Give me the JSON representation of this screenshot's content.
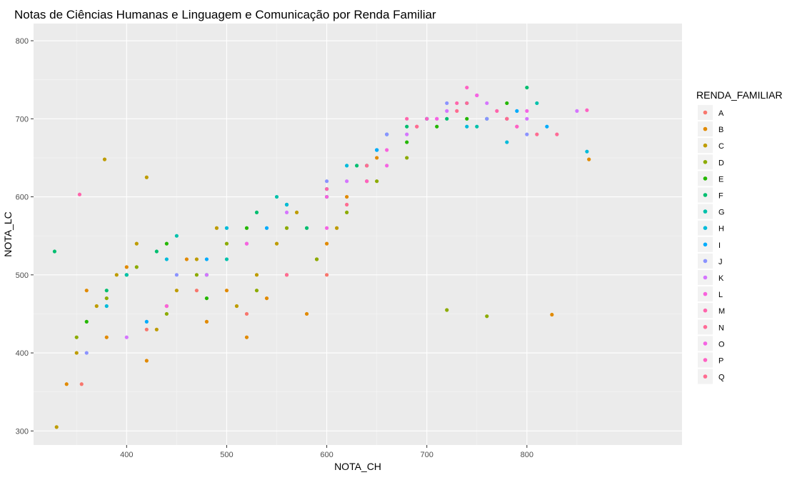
{
  "chart_data": {
    "type": "scatter",
    "title": "Notas de Ciências Humanas e Linguagem e Comunicação por Renda Familiar",
    "xlabel": "NOTA_CH",
    "ylabel": "NOTA_LC",
    "xlim": [
      307,
      955
    ],
    "ylim": [
      282,
      822
    ],
    "x_ticks": [
      400,
      500,
      600,
      700,
      800
    ],
    "y_ticks": [
      300,
      400,
      500,
      600,
      700,
      800
    ],
    "grid": true,
    "legend": {
      "title": "RENDA_FAMILIAR",
      "placement": "right",
      "entries": [
        "A",
        "B",
        "C",
        "D",
        "E",
        "F",
        "G",
        "H",
        "I",
        "J",
        "K",
        "L",
        "M",
        "N",
        "O",
        "P",
        "Q"
      ]
    },
    "colors": {
      "A": "#F8766D",
      "B": "#E18A00",
      "C": "#BE9C00",
      "D": "#8CAB00",
      "E": "#24B700",
      "F": "#00BE70",
      "G": "#00C1AB",
      "H": "#00BBDA",
      "I": "#00ACFC",
      "J": "#8B93FF",
      "K": "#D575FE",
      "L": "#F962DD",
      "M": "#FF65AC",
      "N": "#FF6B96",
      "O": "#F564E3",
      "P": "#FF61C3",
      "Q": "#FF6C91"
    },
    "series": [
      {
        "name": "A",
        "x": [
          355,
          420,
          470,
          520,
          600
        ],
        "y": [
          360,
          430,
          480,
          450,
          500
        ]
      },
      {
        "name": "B",
        "x": [
          340,
          360,
          380,
          400,
          420,
          440,
          460,
          480,
          500,
          520,
          540,
          560,
          580,
          600,
          620,
          650,
          825,
          862
        ],
        "y": [
          360,
          480,
          420,
          510,
          390,
          460,
          520,
          440,
          480,
          420,
          470,
          500,
          450,
          540,
          600,
          650,
          449,
          648
        ]
      },
      {
        "name": "C",
        "x": [
          330,
          350,
          370,
          390,
          410,
          430,
          450,
          470,
          490,
          510,
          530,
          550,
          570,
          590,
          610,
          640,
          378,
          420
        ],
        "y": [
          305,
          400,
          460,
          500,
          540,
          430,
          480,
          520,
          560,
          460,
          500,
          540,
          580,
          520,
          560,
          620,
          648,
          625
        ]
      },
      {
        "name": "D",
        "x": [
          350,
          380,
          410,
          440,
          470,
          500,
          530,
          560,
          590,
          620,
          650,
          680,
          720,
          760
        ],
        "y": [
          420,
          470,
          510,
          450,
          500,
          540,
          480,
          560,
          520,
          580,
          620,
          650,
          455,
          447
        ]
      },
      {
        "name": "E",
        "x": [
          360,
          400,
          440,
          480,
          520,
          560,
          600,
          640,
          680,
          710,
          740,
          780
        ],
        "y": [
          440,
          500,
          540,
          470,
          560,
          590,
          600,
          640,
          670,
          690,
          700,
          720
        ]
      },
      {
        "name": "F",
        "x": [
          328,
          380,
          430,
          480,
          530,
          580,
          630,
          680,
          720,
          760,
          800
        ],
        "y": [
          530,
          480,
          530,
          500,
          580,
          560,
          640,
          690,
          700,
          700,
          740
        ]
      },
      {
        "name": "G",
        "x": [
          400,
          450,
          500,
          550,
          600,
          650,
          700,
          750,
          780,
          810
        ],
        "y": [
          500,
          550,
          520,
          600,
          610,
          660,
          700,
          690,
          700,
          720
        ]
      },
      {
        "name": "H",
        "x": [
          380,
          440,
          500,
          560,
          620,
          660,
          700,
          740,
          780,
          860
        ],
        "y": [
          460,
          520,
          560,
          590,
          640,
          680,
          700,
          690,
          670,
          658
        ]
      },
      {
        "name": "I",
        "x": [
          420,
          480,
          540,
          600,
          650,
          700,
          740,
          790,
          820
        ],
        "y": [
          440,
          520,
          560,
          600,
          660,
          700,
          720,
          710,
          690
        ]
      },
      {
        "name": "J",
        "x": [
          360,
          450,
          520,
          600,
          660,
          720,
          760,
          800
        ],
        "y": [
          400,
          500,
          540,
          620,
          680,
          720,
          700,
          680
        ]
      },
      {
        "name": "K",
        "x": [
          400,
          480,
          560,
          620,
          680,
          720,
          760,
          800,
          850
        ],
        "y": [
          420,
          500,
          580,
          620,
          680,
          710,
          720,
          700,
          710
        ]
      },
      {
        "name": "L",
        "x": [
          440,
          520,
          600,
          660,
          710,
          750,
          790
        ],
        "y": [
          460,
          540,
          600,
          660,
          700,
          730,
          690
        ]
      },
      {
        "name": "M",
        "x": [
          353,
          600,
          680,
          730,
          770
        ],
        "y": [
          603,
          610,
          700,
          720,
          710
        ]
      },
      {
        "name": "N",
        "x": [
          560,
          640,
          690,
          740,
          780,
          830
        ],
        "y": [
          500,
          640,
          690,
          720,
          700,
          680
        ]
      },
      {
        "name": "O",
        "x": [
          600,
          660,
          710,
          750,
          800
        ],
        "y": [
          560,
          640,
          700,
          730,
          710
        ]
      },
      {
        "name": "P",
        "x": [
          640,
          700,
          740,
          790,
          860
        ],
        "y": [
          620,
          700,
          740,
          690,
          711
        ]
      },
      {
        "name": "Q",
        "x": [
          620,
          690,
          730,
          780,
          810
        ],
        "y": [
          590,
          690,
          710,
          700,
          680
        ]
      }
    ]
  }
}
